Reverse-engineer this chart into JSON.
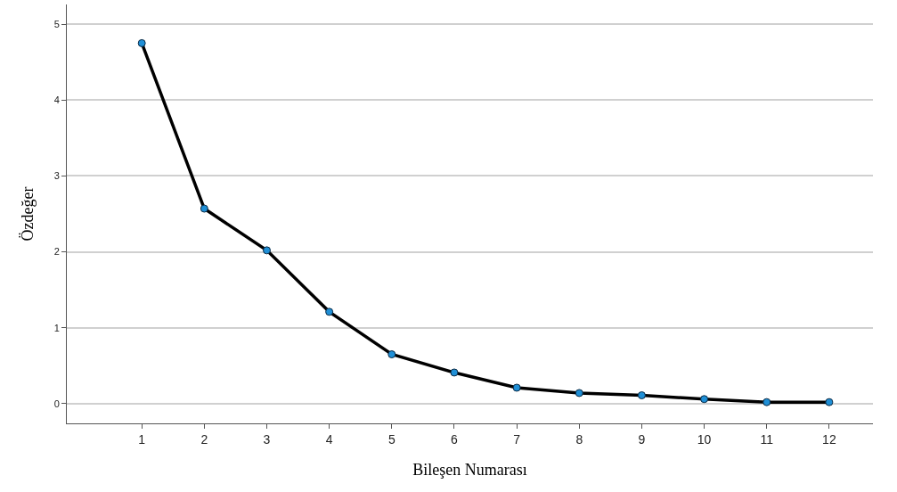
{
  "chart_data": {
    "type": "line",
    "xlabel": "Bileşen Numarası",
    "ylabel": "Özdeğer",
    "x": [
      1,
      2,
      3,
      4,
      5,
      6,
      7,
      8,
      9,
      10,
      11,
      12
    ],
    "series": [
      {
        "color": "#000000",
        "values": [
          4.75,
          2.57,
          2.02,
          1.21,
          0.65,
          0.41,
          0.21,
          0.14,
          0.11,
          0.06,
          0.02,
          0.02
        ]
      }
    ],
    "xlim": [
      -0.2,
      12.7
    ],
    "xticks": [
      1,
      2,
      3,
      4,
      5,
      6,
      7,
      8,
      9,
      10,
      11,
      12
    ],
    "ylim": [
      -0.26,
      5.26
    ],
    "yticks": [
      0,
      1,
      2,
      3,
      4,
      5
    ],
    "grid": "y",
    "marker": "circle",
    "line_style": "solid",
    "legend": false
  }
}
